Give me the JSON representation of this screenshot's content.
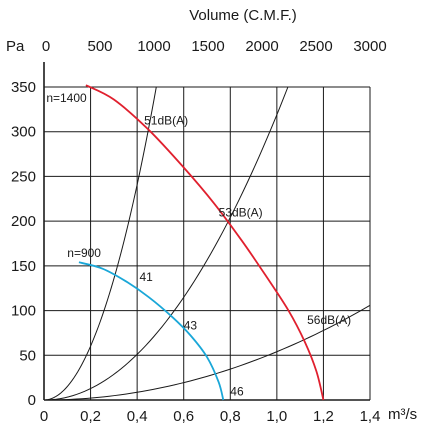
{
  "chart_data": {
    "type": "line",
    "top_axis_title": "Volume (C.M.F.)",
    "y_axis_unit": "Pa",
    "x_axis_unit": "m³/s",
    "xlim": [
      0,
      1.4
    ],
    "ylim": [
      0,
      350
    ],
    "x_ticks": [
      {
        "value": 0,
        "label": "0"
      },
      {
        "value": 0.2,
        "label": "0,2"
      },
      {
        "value": 0.4,
        "label": "0,4"
      },
      {
        "value": 0.6,
        "label": "0,6"
      },
      {
        "value": 0.8,
        "label": "0,8"
      },
      {
        "value": 1.0,
        "label": "1,0"
      },
      {
        "value": 1.2,
        "label": "1,2"
      },
      {
        "value": 1.4,
        "label": "1,4"
      }
    ],
    "y_ticks": [
      0,
      50,
      100,
      150,
      200,
      250,
      300,
      350
    ],
    "top_ticks": [
      {
        "value": 0,
        "label": "0"
      },
      {
        "value": 500,
        "label": "500"
      },
      {
        "value": 1000,
        "label": "1000"
      },
      {
        "value": 1500,
        "label": "1500"
      },
      {
        "value": 2000,
        "label": "2000"
      },
      {
        "value": 2500,
        "label": "2500"
      },
      {
        "value": 3000,
        "label": "3000"
      }
    ],
    "top_axis_max": 3000,
    "grid_x": [
      0.2,
      0.4,
      0.6,
      0.8,
      1.0,
      1.2,
      1.4
    ],
    "grid_y": [
      50,
      100,
      150,
      200,
      250,
      300,
      350
    ],
    "grid": true,
    "series": [
      {
        "name": "n=1400",
        "color": "#e0202e",
        "points": [
          [
            0.18,
            352
          ],
          [
            0.3,
            336
          ],
          [
            0.45,
            302
          ],
          [
            0.6,
            260
          ],
          [
            0.73,
            220
          ],
          [
            0.85,
            178
          ],
          [
            0.95,
            140
          ],
          [
            1.05,
            100
          ],
          [
            1.12,
            65
          ],
          [
            1.17,
            32
          ],
          [
            1.2,
            0
          ]
        ]
      },
      {
        "name": "n=900",
        "color": "#1aa7d8",
        "points": [
          [
            0.15,
            154
          ],
          [
            0.25,
            147
          ],
          [
            0.35,
            133
          ],
          [
            0.45,
            115
          ],
          [
            0.55,
            93
          ],
          [
            0.63,
            72
          ],
          [
            0.7,
            48
          ],
          [
            0.75,
            20
          ],
          [
            0.77,
            0
          ]
        ]
      }
    ],
    "system_curves": [
      {
        "label": "41",
        "k": 1505
      },
      {
        "label": "43",
        "k": 319
      },
      {
        "label": "46",
        "k": 54
      }
    ],
    "annotations": [
      {
        "text": "n=1400",
        "x": 0.01,
        "y": 333
      },
      {
        "text": "51dB(A)",
        "x": 0.43,
        "y": 308
      },
      {
        "text": "53dB(A)",
        "x": 0.75,
        "y": 205
      },
      {
        "text": "56dB(A)",
        "x": 1.13,
        "y": 85
      },
      {
        "text": "n=900",
        "x": 0.1,
        "y": 160
      },
      {
        "text": "41",
        "x": 0.41,
        "y": 133
      },
      {
        "text": "43",
        "x": 0.6,
        "y": 79
      },
      {
        "text": "46",
        "x": 0.8,
        "y": 5
      }
    ]
  }
}
